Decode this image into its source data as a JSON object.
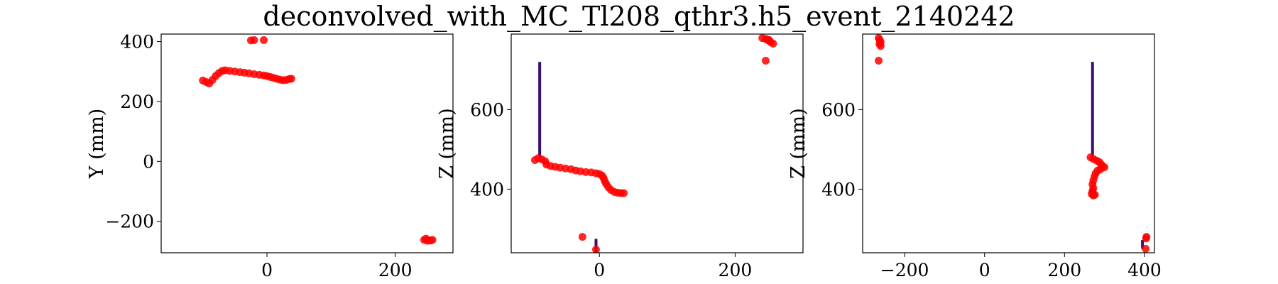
{
  "figure_title": "deconvolved_with_MC_Tl208_qthr3.h5_event_2140242",
  "colors": {
    "point": "#ff0000",
    "bar": "#3b0f70",
    "frame": "#000000"
  },
  "chart_data": [
    {
      "type": "scatter",
      "panel": "XY",
      "ylabel": "Y (mm)",
      "xlabel": "",
      "xlim": [
        -165,
        290
      ],
      "ylim": [
        -305,
        425
      ],
      "xticks": [
        0,
        200
      ],
      "yticks": [
        -200,
        0,
        200,
        400
      ],
      "tick_labels_x": [
        "0",
        "200"
      ],
      "tick_labels_y": [
        "−200",
        "0",
        "200",
        "400"
      ],
      "bars": [],
      "points": [
        [
          -100,
          270
        ],
        [
          -95,
          265
        ],
        [
          -90,
          260
        ],
        [
          -85,
          272
        ],
        [
          -80,
          285
        ],
        [
          -75,
          295
        ],
        [
          -70,
          302
        ],
        [
          -65,
          304
        ],
        [
          -58,
          302
        ],
        [
          -50,
          300
        ],
        [
          -42,
          298
        ],
        [
          -35,
          296
        ],
        [
          -28,
          294
        ],
        [
          -20,
          291
        ],
        [
          -12,
          289
        ],
        [
          -5,
          287
        ],
        [
          0,
          285
        ],
        [
          5,
          282
        ],
        [
          10,
          279
        ],
        [
          15,
          276
        ],
        [
          20,
          273
        ],
        [
          25,
          271
        ],
        [
          30,
          272
        ],
        [
          35,
          275
        ],
        [
          38,
          276
        ],
        [
          -25,
          404
        ],
        [
          -20,
          405
        ],
        [
          -5,
          405
        ],
        [
          245,
          -262
        ],
        [
          250,
          -265
        ],
        [
          255,
          -264
        ],
        [
          258,
          -262
        ],
        [
          248,
          -258
        ]
      ]
    },
    {
      "type": "scatter",
      "panel": "XZ",
      "ylabel": "Z (mm)",
      "xlabel": "",
      "xlim": [
        -130,
        300
      ],
      "ylim": [
        240,
        790
      ],
      "xticks": [
        0,
        200
      ],
      "yticks": [
        400,
        600
      ],
      "tick_labels_x": [
        "0",
        "200"
      ],
      "tick_labels_y": [
        "400",
        "600"
      ],
      "bars": [
        {
          "x": -88,
          "y0": 480,
          "y1": 720
        },
        {
          "x": -5,
          "y0": 240,
          "y1": 275
        }
      ],
      "points": [
        [
          -95,
          473
        ],
        [
          -90,
          478
        ],
        [
          -85,
          475
        ],
        [
          -80,
          470
        ],
        [
          -78,
          462
        ],
        [
          -72,
          458
        ],
        [
          -65,
          456
        ],
        [
          -58,
          454
        ],
        [
          -50,
          452
        ],
        [
          -42,
          450
        ],
        [
          -35,
          447
        ],
        [
          -28,
          445
        ],
        [
          -20,
          443
        ],
        [
          -12,
          442
        ],
        [
          -5,
          440
        ],
        [
          0,
          438
        ],
        [
          4,
          434
        ],
        [
          6,
          428
        ],
        [
          8,
          420
        ],
        [
          10,
          413
        ],
        [
          13,
          405
        ],
        [
          17,
          398
        ],
        [
          22,
          393
        ],
        [
          27,
          391
        ],
        [
          32,
          390
        ],
        [
          36,
          390
        ],
        [
          -25,
          280
        ],
        [
          -5,
          248
        ],
        [
          240,
          780
        ],
        [
          245,
          778
        ],
        [
          248,
          775
        ],
        [
          252,
          770
        ],
        [
          256,
          766
        ],
        [
          250,
          775
        ],
        [
          245,
          723
        ]
      ]
    },
    {
      "type": "scatter",
      "panel": "YZ",
      "ylabel": "Z (mm)",
      "xlabel": "",
      "xlim": [
        -305,
        425
      ],
      "ylim": [
        240,
        790
      ],
      "xticks": [
        -200,
        0,
        200,
        400
      ],
      "yticks": [
        400,
        600
      ],
      "tick_labels_x": [
        "−200",
        "0",
        "200",
        "400"
      ],
      "tick_labels_y": [
        "400",
        "600"
      ],
      "bars": [
        {
          "x": 270,
          "y0": 480,
          "y1": 720
        },
        {
          "x": 395,
          "y0": 250,
          "y1": 272
        }
      ],
      "points": [
        [
          -265,
          780
        ],
        [
          -262,
          775
        ],
        [
          -260,
          770
        ],
        [
          -263,
          765
        ],
        [
          -260,
          760
        ],
        [
          -265,
          723
        ],
        [
          265,
          480
        ],
        [
          272,
          476
        ],
        [
          280,
          472
        ],
        [
          287,
          468
        ],
        [
          292,
          462
        ],
        [
          295,
          457
        ],
        [
          300,
          455
        ],
        [
          290,
          450
        ],
        [
          283,
          447
        ],
        [
          278,
          440
        ],
        [
          275,
          432
        ],
        [
          272,
          422
        ],
        [
          270,
          412
        ],
        [
          272,
          402
        ],
        [
          270,
          395
        ],
        [
          268,
          388
        ],
        [
          272,
          384
        ],
        [
          276,
          386
        ],
        [
          405,
          280
        ],
        [
          404,
          276
        ],
        [
          403,
          250
        ]
      ]
    }
  ]
}
